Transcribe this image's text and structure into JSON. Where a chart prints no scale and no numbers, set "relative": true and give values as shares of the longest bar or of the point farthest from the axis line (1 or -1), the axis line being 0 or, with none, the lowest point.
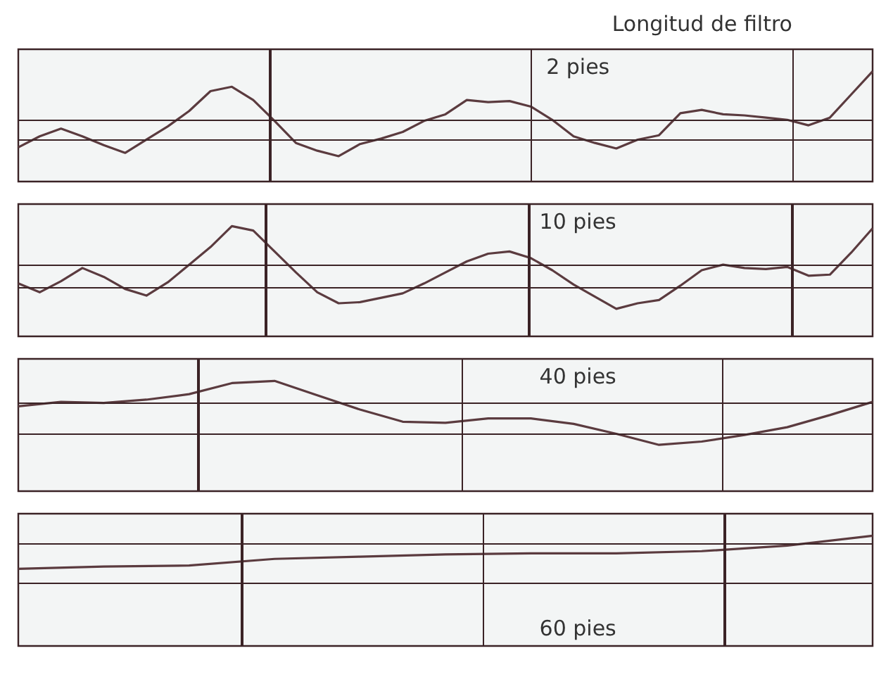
{
  "chart_data": [
    {
      "type": "line",
      "title": "Longitud de filtro",
      "annotations": [
        "2 pies"
      ],
      "relative": true,
      "tick_labels": false,
      "color": "#5b3b3f",
      "categories": [
        null,
        null,
        null,
        null,
        null,
        null,
        null,
        null,
        null,
        null,
        null,
        null,
        null,
        null,
        null,
        null,
        null,
        null,
        null,
        null,
        null,
        null,
        null,
        null,
        null,
        null,
        null,
        null,
        null,
        null,
        null,
        null,
        null,
        null,
        null,
        null,
        null,
        null,
        null,
        null,
        null
      ],
      "values": [
        0.31,
        0.41,
        0.48,
        0.41,
        0.33,
        0.26,
        0.38,
        0.5,
        0.64,
        0.82,
        0.86,
        0.74,
        0.55,
        0.35,
        0.28,
        0.23,
        0.34,
        0.39,
        0.45,
        0.55,
        0.61,
        0.74,
        0.72,
        0.73,
        0.68,
        0.56,
        0.41,
        0.35,
        0.3,
        0.38,
        0.42,
        0.62,
        0.65,
        0.61,
        0.6,
        0.58,
        0.56,
        0.51,
        0.58,
        0.79,
        1
      ]
    },
    {
      "type": "line",
      "annotations": [
        "10 pies"
      ],
      "relative": true,
      "tick_labels": false,
      "color": "#5b3b3f",
      "categories": [
        null,
        null,
        null,
        null,
        null,
        null,
        null,
        null,
        null,
        null,
        null,
        null,
        null,
        null,
        null,
        null,
        null,
        null,
        null,
        null,
        null,
        null,
        null,
        null,
        null,
        null,
        null,
        null,
        null,
        null,
        null,
        null,
        null,
        null,
        null,
        null,
        null,
        null,
        null,
        null,
        null
      ],
      "values": [
        0.48,
        0.4,
        0.5,
        0.62,
        0.54,
        0.43,
        0.37,
        0.49,
        0.65,
        0.81,
        1,
        0.96,
        0.77,
        0.58,
        0.4,
        0.3,
        0.31,
        0.35,
        0.39,
        0.48,
        0.58,
        0.68,
        0.75,
        0.77,
        0.71,
        0.6,
        0.47,
        0.36,
        0.25,
        0.3,
        0.33,
        0.46,
        0.6,
        0.65,
        0.62,
        0.61,
        0.63,
        0.55,
        0.56,
        0.76,
        0.98
      ]
    },
    {
      "type": "line",
      "annotations": [
        "40 pies"
      ],
      "relative": true,
      "tick_labels": false,
      "color": "#5b3b3f",
      "categories": [
        null,
        null,
        null,
        null,
        null,
        null,
        null,
        null,
        null,
        null,
        null,
        null,
        null,
        null,
        null,
        null,
        null,
        null,
        null,
        null,
        null
      ],
      "values": [
        0.77,
        0.81,
        0.8,
        0.83,
        0.88,
        0.98,
        1,
        0.87,
        0.74,
        0.63,
        0.62,
        0.66,
        0.66,
        0.61,
        0.52,
        0.42,
        0.45,
        0.51,
        0.58,
        0.69,
        0.81
      ]
    },
    {
      "type": "line",
      "annotations": [
        "60 pies"
      ],
      "relative": true,
      "tick_labels": false,
      "color": "#5b3b3f",
      "categories": [
        null,
        null,
        null,
        null,
        null,
        null,
        null,
        null,
        null,
        null,
        null
      ],
      "values": [
        0.7,
        0.72,
        0.73,
        0.79,
        0.81,
        0.83,
        0.84,
        0.84,
        0.86,
        0.91,
        1
      ]
    }
  ]
}
